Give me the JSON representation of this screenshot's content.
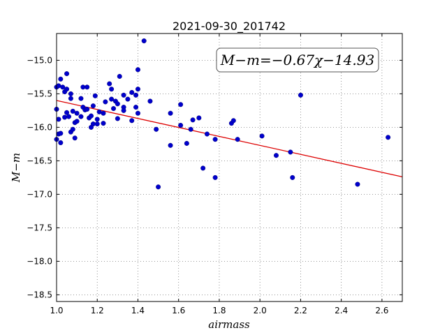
{
  "chart_data": {
    "type": "scatter",
    "title": "2021-09-30_201742",
    "xlabel": "airmass",
    "ylabel": "M−m",
    "xlim": [
      1.0,
      2.7
    ],
    "ylim": [
      -18.6,
      -14.6
    ],
    "x_ticks": [
      1.0,
      1.2,
      1.4,
      1.6,
      1.8,
      2.0,
      2.2,
      2.4,
      2.6
    ],
    "x_tick_labels": [
      "1.0",
      "1.2",
      "1.4",
      "1.6",
      "1.8",
      "2.0",
      "2.2",
      "2.4",
      "2.6"
    ],
    "y_ticks": [
      -15.0,
      -15.5,
      -16.0,
      -16.5,
      -17.0,
      -17.5,
      -18.0,
      -18.5
    ],
    "y_tick_labels": [
      "−15.0",
      "−15.5",
      "−16.0",
      "−16.5",
      "−17.0",
      "−17.5",
      "−18.0",
      "−18.5"
    ],
    "grid": true,
    "annotation": "M−m=−0.67χ−14.93",
    "fit_line": {
      "slope": -0.67,
      "intercept": -14.93,
      "color": "#dd0000"
    },
    "point_color": "#0000cc",
    "points": [
      [
        1.0,
        -15.4
      ],
      [
        1.0,
        -15.73
      ],
      [
        1.0,
        -16.18
      ],
      [
        1.01,
        -15.38
      ],
      [
        1.01,
        -16.1
      ],
      [
        1.01,
        -15.88
      ],
      [
        1.02,
        -15.28
      ],
      [
        1.02,
        -16.09
      ],
      [
        1.02,
        -16.23
      ],
      [
        1.03,
        -15.4
      ],
      [
        1.04,
        -15.47
      ],
      [
        1.04,
        -15.85
      ],
      [
        1.05,
        -15.43
      ],
      [
        1.05,
        -15.2
      ],
      [
        1.05,
        -15.78
      ],
      [
        1.06,
        -15.84
      ],
      [
        1.07,
        -15.5
      ],
      [
        1.07,
        -15.57
      ],
      [
        1.07,
        -16.07
      ],
      [
        1.08,
        -16.03
      ],
      [
        1.08,
        -15.76
      ],
      [
        1.09,
        -15.93
      ],
      [
        1.09,
        -16.16
      ],
      [
        1.1,
        -15.79
      ],
      [
        1.1,
        -15.91
      ],
      [
        1.12,
        -15.57
      ],
      [
        1.12,
        -15.84
      ],
      [
        1.13,
        -15.4
      ],
      [
        1.13,
        -15.7
      ],
      [
        1.14,
        -15.74
      ],
      [
        1.15,
        -15.4
      ],
      [
        1.15,
        -15.73
      ],
      [
        1.16,
        -15.86
      ],
      [
        1.17,
        -15.83
      ],
      [
        1.17,
        -16.0
      ],
      [
        1.18,
        -15.68
      ],
      [
        1.18,
        -15.95
      ],
      [
        1.19,
        -15.53
      ],
      [
        1.2,
        -15.88
      ],
      [
        1.2,
        -15.95
      ],
      [
        1.21,
        -15.77
      ],
      [
        1.23,
        -15.79
      ],
      [
        1.23,
        -15.94
      ],
      [
        1.24,
        -15.62
      ],
      [
        1.26,
        -15.35
      ],
      [
        1.27,
        -15.43
      ],
      [
        1.27,
        -15.58
      ],
      [
        1.28,
        -15.72
      ],
      [
        1.29,
        -15.61
      ],
      [
        1.3,
        -15.87
      ],
      [
        1.3,
        -15.65
      ],
      [
        1.31,
        -15.24
      ],
      [
        1.33,
        -15.52
      ],
      [
        1.33,
        -15.7
      ],
      [
        1.33,
        -15.75
      ],
      [
        1.35,
        -15.58
      ],
      [
        1.37,
        -15.9
      ],
      [
        1.37,
        -15.48
      ],
      [
        1.39,
        -15.52
      ],
      [
        1.39,
        -15.7
      ],
      [
        1.4,
        -15.79
      ],
      [
        1.4,
        -15.43
      ],
      [
        1.4,
        -15.14
      ],
      [
        1.43,
        -14.71
      ],
      [
        1.46,
        -15.61
      ],
      [
        1.49,
        -16.03
      ],
      [
        1.5,
        -16.89
      ],
      [
        1.56,
        -15.79
      ],
      [
        1.56,
        -16.27
      ],
      [
        1.61,
        -15.97
      ],
      [
        1.61,
        -15.66
      ],
      [
        1.64,
        -16.24
      ],
      [
        1.66,
        -16.03
      ],
      [
        1.67,
        -15.89
      ],
      [
        1.7,
        -15.86
      ],
      [
        1.72,
        -16.61
      ],
      [
        1.74,
        -16.1
      ],
      [
        1.78,
        -16.18
      ],
      [
        1.78,
        -16.75
      ],
      [
        1.86,
        -15.94
      ],
      [
        1.87,
        -15.9
      ],
      [
        1.89,
        -16.18
      ],
      [
        2.01,
        -16.13
      ],
      [
        2.08,
        -16.42
      ],
      [
        2.15,
        -16.37
      ],
      [
        2.16,
        -16.75
      ],
      [
        2.2,
        -15.52
      ],
      [
        2.48,
        -16.85
      ],
      [
        2.63,
        -16.15
      ]
    ]
  }
}
